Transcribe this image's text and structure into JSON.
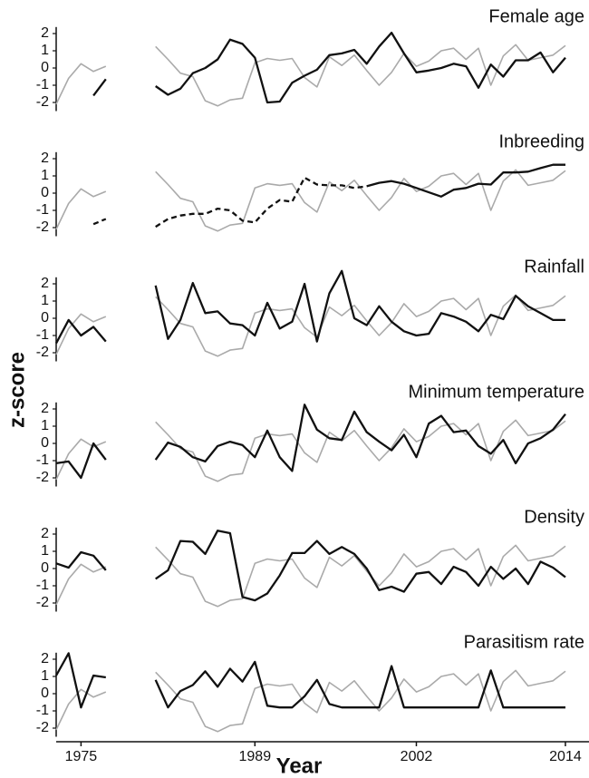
{
  "axes": {
    "xlabel": "Year",
    "ylabel": "z-score",
    "xlim": [
      1973,
      2015.9
    ],
    "xticks": [
      1975,
      1989,
      2002,
      2014
    ]
  },
  "chart_data": [
    {
      "type": "line",
      "title": "Female age",
      "ylim": [
        -2.5,
        2.8
      ],
      "yticks": [
        -2,
        -1,
        0,
        1,
        2
      ],
      "x": [
        1973,
        1974,
        1975,
        1976,
        1977,
        1978,
        1979,
        1980,
        1981,
        1982,
        1983,
        1984,
        1985,
        1986,
        1987,
        1988,
        1989,
        1990,
        1991,
        1992,
        1993,
        1994,
        1995,
        1996,
        1997,
        1998,
        1999,
        2000,
        2001,
        2002,
        2003,
        2004,
        2005,
        2006,
        2007,
        2008,
        2009,
        2010,
        2011,
        2012,
        2013,
        2014
      ],
      "series": [
        {
          "color": "#aaaaaa",
          "values": [
            -2.1,
            -0.6,
            0.25,
            -0.2,
            0.1,
            null,
            null,
            null,
            1.25,
            0.5,
            -0.3,
            -0.5,
            -1.9,
            -2.2,
            -1.85,
            -1.75,
            0.3,
            0.55,
            0.45,
            0.55,
            -0.55,
            -1.1,
            0.65,
            0.15,
            0.75,
            -0.15,
            -1.0,
            -0.25,
            0.85,
            0.1,
            0.4,
            1.0,
            1.15,
            0.5,
            1.15,
            -1.0,
            0.7,
            1.35,
            0.45,
            0.6,
            0.75,
            1.3
          ]
        },
        {
          "color": "#111111",
          "values": [
            null,
            null,
            null,
            -1.6,
            -0.65,
            null,
            null,
            null,
            -1.05,
            -1.55,
            -1.2,
            -0.3,
            0,
            0.5,
            1.65,
            1.4,
            0.6,
            -2.0,
            -1.95,
            -0.85,
            -0.45,
            -0.1,
            0.75,
            0.85,
            1.05,
            0.25,
            1.25,
            2.05,
            0.85,
            -0.25,
            -0.15,
            0,
            0.25,
            0.1,
            -1.15,
            0.2,
            -0.5,
            0.45,
            0.45,
            0.9,
            -0.25,
            0.6
          ]
        }
      ]
    },
    {
      "type": "line",
      "title": "Inbreeding",
      "ylim": [
        -2.5,
        2.8
      ],
      "yticks": [
        -2,
        -1,
        0,
        1,
        2
      ],
      "x": [
        1973,
        1974,
        1975,
        1976,
        1977,
        1978,
        1979,
        1980,
        1981,
        1982,
        1983,
        1984,
        1985,
        1986,
        1987,
        1988,
        1989,
        1990,
        1991,
        1992,
        1993,
        1994,
        1995,
        1996,
        1997,
        1998,
        1999,
        2000,
        2001,
        2002,
        2003,
        2004,
        2005,
        2006,
        2007,
        2008,
        2009,
        2010,
        2011,
        2012,
        2013,
        2014
      ],
      "series": [
        {
          "color": "#aaaaaa",
          "values": [
            -2.1,
            -0.6,
            0.25,
            -0.2,
            0.1,
            null,
            null,
            null,
            1.25,
            0.5,
            -0.3,
            -0.5,
            -1.9,
            -2.2,
            -1.85,
            -1.75,
            0.3,
            0.55,
            0.45,
            0.55,
            -0.55,
            -1.1,
            0.65,
            0.15,
            0.75,
            -0.15,
            -1.0,
            -0.25,
            0.85,
            0.1,
            0.4,
            1.0,
            1.15,
            0.5,
            1.15,
            -1.0,
            0.7,
            1.35,
            0.45,
            0.6,
            0.75,
            1.3
          ]
        },
        {
          "color": "#111111",
          "dashed": true,
          "values": [
            null,
            null,
            null,
            -1.8,
            -1.5,
            null,
            null,
            null,
            -1.95,
            -1.5,
            -1.3,
            -1.2,
            -1.2,
            -0.9,
            -1.0,
            -1.6,
            -1.7,
            -0.9,
            -0.4,
            -0.5,
            0.9,
            0.5,
            0.45,
            0.45,
            0.3,
            0.4,
            null,
            null,
            null,
            null,
            null,
            null,
            null,
            null,
            null,
            null,
            null,
            null,
            null,
            null,
            null,
            null
          ]
        },
        {
          "color": "#111111",
          "values": [
            null,
            null,
            null,
            null,
            null,
            null,
            null,
            null,
            null,
            null,
            null,
            null,
            null,
            null,
            null,
            null,
            null,
            null,
            null,
            null,
            null,
            null,
            null,
            null,
            null,
            0.4,
            0.6,
            0.7,
            0.55,
            0.3,
            0.05,
            -0.2,
            0.2,
            0.3,
            0.55,
            0.5,
            1.2,
            1.2,
            1.25,
            1.45,
            1.65,
            1.65
          ]
        }
      ]
    },
    {
      "type": "line",
      "title": "Rainfall",
      "ylim": [
        -2.5,
        2.8
      ],
      "yticks": [
        -2,
        -1,
        0,
        1,
        2
      ],
      "x": [
        1973,
        1974,
        1975,
        1976,
        1977,
        1978,
        1979,
        1980,
        1981,
        1982,
        1983,
        1984,
        1985,
        1986,
        1987,
        1988,
        1989,
        1990,
        1991,
        1992,
        1993,
        1994,
        1995,
        1996,
        1997,
        1998,
        1999,
        2000,
        2001,
        2002,
        2003,
        2004,
        2005,
        2006,
        2007,
        2008,
        2009,
        2010,
        2011,
        2012,
        2013,
        2014
      ],
      "series": [
        {
          "color": "#aaaaaa",
          "values": [
            -2.1,
            -0.6,
            0.25,
            -0.2,
            0.1,
            null,
            null,
            null,
            1.25,
            0.5,
            -0.3,
            -0.5,
            -1.9,
            -2.2,
            -1.85,
            -1.75,
            0.3,
            0.55,
            0.45,
            0.55,
            -0.55,
            -1.1,
            0.65,
            0.15,
            0.75,
            -0.15,
            -1.0,
            -0.25,
            0.85,
            0.1,
            0.4,
            1.0,
            1.15,
            0.5,
            1.15,
            -1.0,
            0.7,
            1.35,
            0.45,
            0.6,
            0.75,
            1.3
          ]
        },
        {
          "color": "#111111",
          "values": [
            -1.45,
            -0.1,
            -1.0,
            -0.5,
            -1.35,
            null,
            null,
            null,
            1.9,
            -1.2,
            -0.1,
            2.05,
            0.3,
            0.4,
            -0.3,
            -0.4,
            -1.0,
            0.9,
            -0.6,
            -0.2,
            2.0,
            -1.35,
            1.45,
            2.75,
            0,
            -0.4,
            0.7,
            -0.2,
            -0.75,
            -1.0,
            -0.9,
            0.3,
            0.1,
            -0.2,
            -0.75,
            0.2,
            -0.05,
            1.3,
            0.7,
            0.3,
            -0.1,
            -0.1
          ]
        }
      ]
    },
    {
      "type": "line",
      "title": "Minimum temperature",
      "ylim": [
        -2.5,
        2.8
      ],
      "yticks": [
        -2,
        -1,
        0,
        1,
        2
      ],
      "x": [
        1973,
        1974,
        1975,
        1976,
        1977,
        1978,
        1979,
        1980,
        1981,
        1982,
        1983,
        1984,
        1985,
        1986,
        1987,
        1988,
        1989,
        1990,
        1991,
        1992,
        1993,
        1994,
        1995,
        1996,
        1997,
        1998,
        1999,
        2000,
        2001,
        2002,
        2003,
        2004,
        2005,
        2006,
        2007,
        2008,
        2009,
        2010,
        2011,
        2012,
        2013,
        2014
      ],
      "series": [
        {
          "color": "#aaaaaa",
          "values": [
            -2.1,
            -0.6,
            0.25,
            -0.2,
            0.1,
            null,
            null,
            null,
            1.25,
            0.5,
            -0.3,
            -0.5,
            -1.9,
            -2.2,
            -1.85,
            -1.75,
            0.3,
            0.55,
            0.45,
            0.55,
            -0.55,
            -1.1,
            0.65,
            0.15,
            0.75,
            -0.15,
            -1.0,
            -0.25,
            0.85,
            0.1,
            0.4,
            1.0,
            1.15,
            0.5,
            1.15,
            -1.0,
            0.7,
            1.35,
            0.45,
            0.6,
            0.75,
            1.3
          ]
        },
        {
          "color": "#111111",
          "values": [
            -1.15,
            -1.05,
            -2.0,
            0,
            -0.95,
            null,
            null,
            null,
            -0.95,
            0.05,
            -0.2,
            -0.8,
            -1.05,
            -0.15,
            0.1,
            -0.1,
            -0.8,
            0.75,
            -0.8,
            -1.6,
            2.25,
            0.8,
            0.3,
            0.2,
            1.85,
            0.65,
            0.1,
            -0.4,
            0.5,
            -0.8,
            1.15,
            1.6,
            0.65,
            0.75,
            -0.15,
            -0.6,
            0.2,
            -1.15,
            0,
            0.3,
            0.8,
            1.7
          ]
        }
      ]
    },
    {
      "type": "line",
      "title": "Density",
      "ylim": [
        -2.5,
        2.8
      ],
      "yticks": [
        -2,
        -1,
        0,
        1,
        2
      ],
      "x": [
        1973,
        1974,
        1975,
        1976,
        1977,
        1978,
        1979,
        1980,
        1981,
        1982,
        1983,
        1984,
        1985,
        1986,
        1987,
        1988,
        1989,
        1990,
        1991,
        1992,
        1993,
        1994,
        1995,
        1996,
        1997,
        1998,
        1999,
        2000,
        2001,
        2002,
        2003,
        2004,
        2005,
        2006,
        2007,
        2008,
        2009,
        2010,
        2011,
        2012,
        2013,
        2014
      ],
      "series": [
        {
          "color": "#aaaaaa",
          "values": [
            -2.1,
            -0.6,
            0.25,
            -0.2,
            0.1,
            null,
            null,
            null,
            1.25,
            0.5,
            -0.3,
            -0.5,
            -1.9,
            -2.2,
            -1.85,
            -1.75,
            0.3,
            0.55,
            0.45,
            0.55,
            -0.55,
            -1.1,
            0.65,
            0.15,
            0.75,
            -0.15,
            -1.0,
            -0.25,
            0.85,
            0.1,
            0.4,
            1.0,
            1.15,
            0.5,
            1.15,
            -1.0,
            0.7,
            1.35,
            0.45,
            0.6,
            0.75,
            1.3
          ]
        },
        {
          "color": "#111111",
          "values": [
            0.3,
            0.05,
            0.95,
            0.75,
            -0.1,
            null,
            null,
            null,
            -0.6,
            -0.1,
            1.6,
            1.55,
            0.85,
            2.2,
            2.05,
            -1.65,
            -1.85,
            -1.45,
            -0.4,
            0.9,
            0.9,
            1.6,
            0.85,
            1.25,
            0.85,
            0,
            -1.25,
            -1.05,
            -1.35,
            -0.3,
            -0.2,
            -0.9,
            0.1,
            -0.2,
            -1.0,
            0.1,
            -0.6,
            0,
            -0.9,
            0.4,
            0.05,
            -0.5
          ]
        }
      ]
    },
    {
      "type": "line",
      "title": "Parasitism rate",
      "ylim": [
        -2.5,
        2.8
      ],
      "yticks": [
        -2,
        -1,
        0,
        1,
        2
      ],
      "x": [
        1973,
        1974,
        1975,
        1976,
        1977,
        1978,
        1979,
        1980,
        1981,
        1982,
        1983,
        1984,
        1985,
        1986,
        1987,
        1988,
        1989,
        1990,
        1991,
        1992,
        1993,
        1994,
        1995,
        1996,
        1997,
        1998,
        1999,
        2000,
        2001,
        2002,
        2003,
        2004,
        2005,
        2006,
        2007,
        2008,
        2009,
        2010,
        2011,
        2012,
        2013,
        2014
      ],
      "series": [
        {
          "color": "#aaaaaa",
          "values": [
            -2.1,
            -0.6,
            0.25,
            -0.2,
            0.1,
            null,
            null,
            null,
            1.25,
            0.5,
            -0.3,
            -0.5,
            -1.9,
            -2.2,
            -1.85,
            -1.75,
            0.3,
            0.55,
            0.45,
            0.55,
            -0.55,
            -1.1,
            0.65,
            0.15,
            0.75,
            -0.15,
            -1.0,
            -0.25,
            0.85,
            0.1,
            0.4,
            1.0,
            1.15,
            0.5,
            1.15,
            -1.0,
            0.7,
            1.35,
            0.45,
            0.6,
            0.75,
            1.3
          ]
        },
        {
          "color": "#111111",
          "values": [
            1.05,
            2.35,
            -0.8,
            1.05,
            0.95,
            null,
            null,
            null,
            0.8,
            -0.8,
            0.15,
            0.5,
            1.3,
            0.4,
            1.45,
            0.7,
            1.85,
            -0.7,
            -0.8,
            -0.8,
            -0.15,
            0.8,
            -0.6,
            -0.8,
            -0.8,
            -0.8,
            -0.8,
            1.6,
            -0.8,
            -0.8,
            -0.8,
            -0.8,
            -0.8,
            -0.8,
            -0.8,
            1.35,
            -0.8,
            -0.8,
            -0.8,
            -0.8,
            -0.8,
            -0.8
          ]
        }
      ]
    }
  ]
}
